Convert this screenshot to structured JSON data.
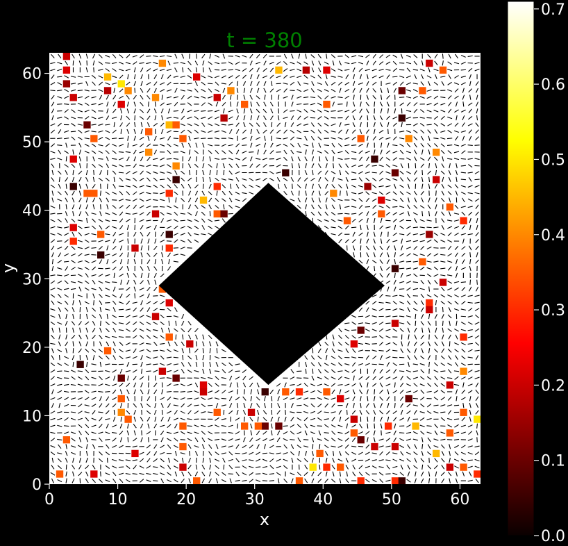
{
  "chart_data": {
    "type": "heatmap",
    "title": "t = 380",
    "xlabel": "x",
    "ylabel": "y",
    "xlim": [
      0,
      63
    ],
    "ylim": [
      0,
      63
    ],
    "xticks": [
      "0",
      "10",
      "20",
      "30",
      "40",
      "50",
      "60"
    ],
    "yticks": [
      "0",
      "10",
      "20",
      "30",
      "40",
      "50",
      "60"
    ],
    "colorbar": {
      "colormap": "hot",
      "range": [
        0.0,
        0.71
      ],
      "ticks": [
        "0.0",
        "0.1",
        "0.2",
        "0.3",
        "0.4",
        "0.5",
        "0.6",
        "0.7"
      ]
    },
    "grid": false,
    "obstacle": {
      "shape": "diamond",
      "center": [
        32,
        29
      ],
      "vertices": [
        [
          16,
          29
        ],
        [
          32,
          44
        ],
        [
          49,
          29
        ],
        [
          32,
          14.5
        ]
      ],
      "color": "#000000"
    },
    "background_value": 0.71,
    "director_glyphs": "short-line-segments",
    "highlighted_cells": [
      [
        2,
        62,
        0.2
      ],
      [
        2,
        60,
        0.22
      ],
      [
        2,
        58,
        0.15
      ],
      [
        3,
        56,
        0.2
      ],
      [
        5,
        52,
        0.1
      ],
      [
        3,
        47,
        0.22
      ],
      [
        3,
        43,
        0.05
      ],
      [
        3,
        37,
        0.22
      ],
      [
        3,
        35,
        0.3
      ],
      [
        5,
        42,
        0.35
      ],
      [
        6,
        42,
        0.35
      ],
      [
        6,
        50,
        0.35
      ],
      [
        7,
        36,
        0.35
      ],
      [
        7,
        33,
        0.05
      ],
      [
        8,
        57,
        0.18
      ],
      [
        8,
        59,
        0.45
      ],
      [
        10,
        55,
        0.22
      ],
      [
        10,
        58,
        0.5
      ],
      [
        11,
        57,
        0.4
      ],
      [
        12,
        34,
        0.2
      ],
      [
        14,
        48,
        0.4
      ],
      [
        14,
        51,
        0.35
      ],
      [
        15,
        56,
        0.4
      ],
      [
        16,
        61,
        0.4
      ],
      [
        17,
        52,
        0.45
      ],
      [
        18,
        52,
        0.35
      ],
      [
        19,
        50,
        0.35
      ],
      [
        18,
        46,
        0.4
      ],
      [
        18,
        44,
        0.05
      ],
      [
        17,
        42,
        0.3
      ],
      [
        15,
        39,
        0.2
      ],
      [
        17,
        36,
        0.05
      ],
      [
        17,
        34,
        0.3
      ],
      [
        21,
        59,
        0.22
      ],
      [
        22,
        41,
        0.45
      ],
      [
        24,
        39,
        0.35
      ],
      [
        25,
        39,
        0.1
      ],
      [
        26,
        57,
        0.4
      ],
      [
        24,
        56,
        0.2
      ],
      [
        25,
        53,
        0.18
      ],
      [
        28,
        55,
        0.35
      ],
      [
        24,
        43,
        0.3
      ],
      [
        33,
        60,
        0.45
      ],
      [
        37,
        60,
        0.18
      ],
      [
        34,
        45,
        0.05
      ],
      [
        40,
        60,
        0.22
      ],
      [
        40,
        55,
        0.35
      ],
      [
        41,
        42,
        0.4
      ],
      [
        43,
        38,
        0.35
      ],
      [
        43,
        32,
        0.35
      ],
      [
        45,
        50,
        0.35
      ],
      [
        46,
        43,
        0.15
      ],
      [
        47,
        47,
        0.05
      ],
      [
        48,
        39,
        0.35
      ],
      [
        50,
        45,
        0.1
      ],
      [
        48,
        41,
        0.22
      ],
      [
        51,
        57,
        0.1
      ],
      [
        51,
        53,
        0.05
      ],
      [
        52,
        50,
        0.4
      ],
      [
        54,
        57,
        0.35
      ],
      [
        55,
        61,
        0.2
      ],
      [
        57,
        60,
        0.35
      ],
      [
        56,
        48,
        0.4
      ],
      [
        56,
        44,
        0.2
      ],
      [
        55,
        36,
        0.15
      ],
      [
        54,
        32,
        0.35
      ],
      [
        58,
        40,
        0.35
      ],
      [
        60,
        38,
        0.3
      ],
      [
        57,
        29,
        0.2
      ],
      [
        55,
        26,
        0.3
      ],
      [
        55,
        25,
        0.2
      ],
      [
        50,
        31,
        0.05
      ],
      [
        50,
        23,
        0.2
      ],
      [
        45,
        22,
        0.1
      ],
      [
        44,
        20,
        0.22
      ],
      [
        60,
        21,
        0.3
      ],
      [
        52,
        12,
        0.1
      ],
      [
        58,
        14,
        0.2
      ],
      [
        60,
        16,
        0.4
      ],
      [
        62,
        9,
        0.5
      ],
      [
        60,
        2,
        0.35
      ],
      [
        62,
        1,
        0.3
      ],
      [
        60,
        10,
        0.35
      ],
      [
        49,
        8,
        0.3
      ],
      [
        44,
        9,
        0.2
      ],
      [
        45,
        6,
        0.1
      ],
      [
        42,
        12,
        0.22
      ],
      [
        40,
        13,
        0.35
      ],
      [
        36,
        13,
        0.3
      ],
      [
        34,
        13,
        0.35
      ],
      [
        31,
        13,
        0.05
      ],
      [
        29,
        10,
        0.2
      ],
      [
        31,
        8,
        0.1
      ],
      [
        33,
        8,
        0.1
      ],
      [
        30,
        8,
        0.35
      ],
      [
        28,
        8,
        0.35
      ],
      [
        24,
        10,
        0.35
      ],
      [
        22,
        14,
        0.22
      ],
      [
        22,
        13,
        0.2
      ],
      [
        18,
        15,
        0.1
      ],
      [
        16,
        16,
        0.2
      ],
      [
        17,
        21,
        0.35
      ],
      [
        15,
        24,
        0.2
      ],
      [
        17,
        26,
        0.22
      ],
      [
        20,
        20,
        0.2
      ],
      [
        16,
        28,
        0.35
      ],
      [
        10,
        15,
        0.1
      ],
      [
        8,
        19,
        0.35
      ],
      [
        4,
        17,
        0.05
      ],
      [
        10,
        12,
        0.35
      ],
      [
        11,
        9,
        0.35
      ],
      [
        10,
        10,
        0.4
      ],
      [
        12,
        4,
        0.22
      ],
      [
        6,
        1,
        0.22
      ],
      [
        2,
        6,
        0.35
      ],
      [
        1,
        1,
        0.35
      ],
      [
        19,
        2,
        0.2
      ],
      [
        19,
        8,
        0.35
      ],
      [
        21,
        0,
        0.35
      ],
      [
        19,
        5,
        0.35
      ],
      [
        39,
        4,
        0.35
      ],
      [
        40,
        2,
        0.3
      ],
      [
        42,
        2,
        0.35
      ],
      [
        44,
        7,
        0.35
      ],
      [
        45,
        0,
        0.3
      ],
      [
        47,
        5,
        0.2
      ],
      [
        50,
        5,
        0.2
      ],
      [
        50,
        0,
        0.3
      ],
      [
        51,
        0,
        0.05
      ],
      [
        53,
        8,
        0.45
      ],
      [
        58,
        7,
        0.35
      ],
      [
        58,
        2,
        0.2
      ],
      [
        56,
        4,
        0.45
      ],
      [
        36,
        0,
        0.35
      ],
      [
        38,
        2,
        0.5
      ]
    ]
  }
}
